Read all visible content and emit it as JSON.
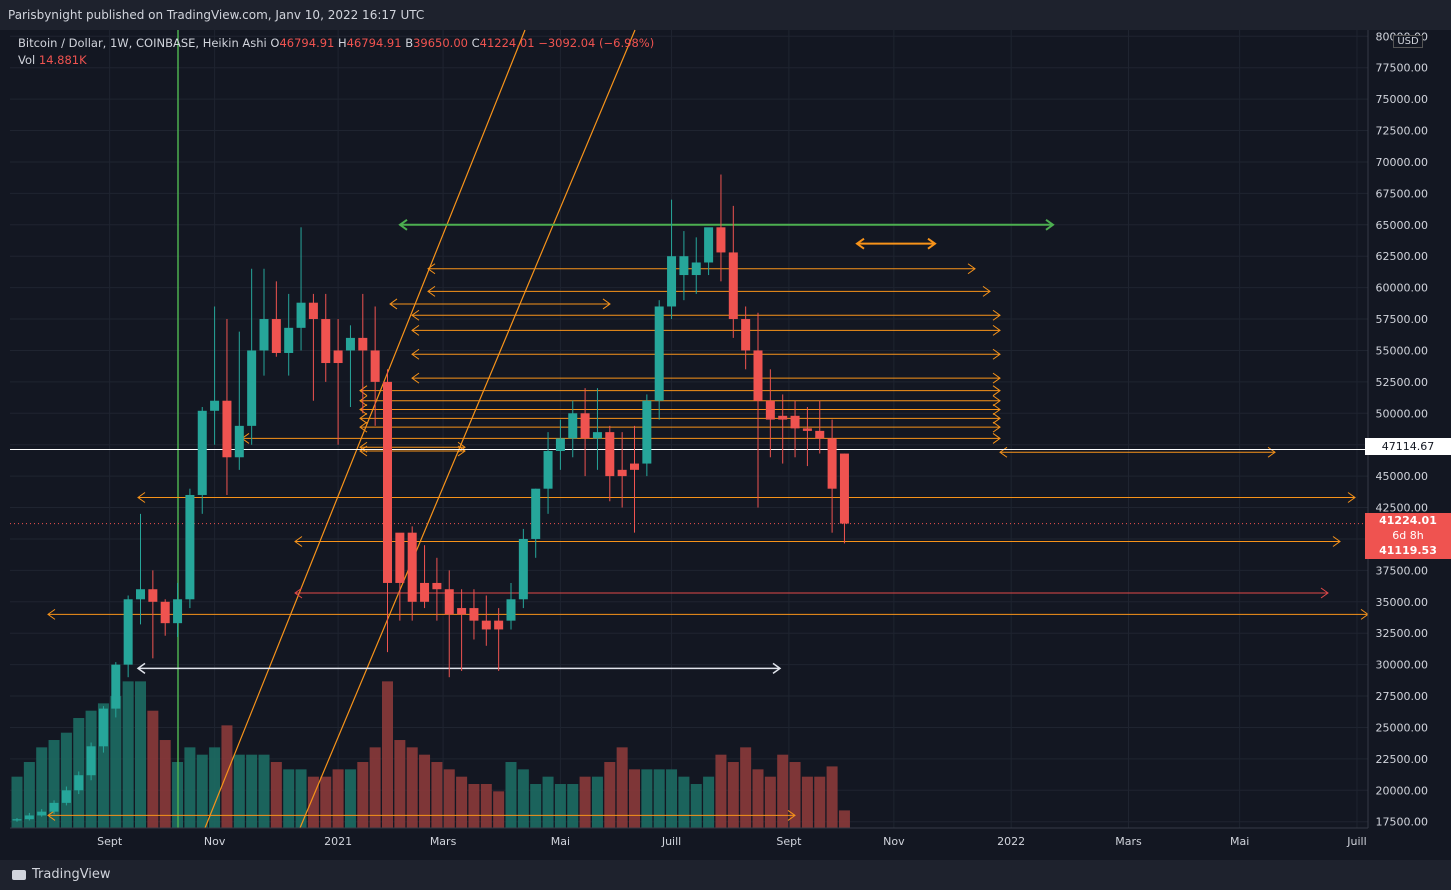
{
  "header": {
    "published": "Parisbynight published on TradingView.com, Janv 10, 2022 16:17 UTC"
  },
  "legend": {
    "symbol": "Bitcoin / Dollar, 1W, COINBASE, Heikin Ashi",
    "o_label": "O",
    "o": "46794.91",
    "h_label": "H",
    "h": "46794.91",
    "b_label": "B",
    "b": "39650.00",
    "c_label": "C",
    "c": "41224.01",
    "change": "−3092.04 (−6.98%)",
    "vol_label": "Vol",
    "vol": "14.881K"
  },
  "price_axis": {
    "currency": "USD"
  },
  "badges": {
    "white_level": "47114.67",
    "last_price": "41224.01",
    "countdown": "6d 8h",
    "second_price": "41119.53"
  },
  "footer": {
    "brand": "TradingView"
  },
  "colors": {
    "up": "#26a69a",
    "down": "#ef5350",
    "fib": "#f7931a",
    "green": "#4caf50",
    "bg": "#131722"
  },
  "chart_data": {
    "type": "candlestick",
    "subtitle": "Bitcoin / Dollar, 1W, COINBASE, Heikin Ashi",
    "ylim": [
      17000,
      80500
    ],
    "y_ticks": [
      17500,
      20000,
      22500,
      25000,
      27500,
      30000,
      32500,
      35000,
      37500,
      40000,
      42500,
      45000,
      47500,
      50000,
      52500,
      55000,
      57500,
      60000,
      62500,
      65000,
      67500,
      70000,
      72500,
      75000,
      77500,
      80000
    ],
    "x_ticks": [
      "Sept",
      "Nov",
      "2021",
      "Mars",
      "Mai",
      "Juill",
      "Sept",
      "Nov",
      "2022",
      "Mars",
      "Mai",
      "Juill"
    ],
    "candles": [
      [
        17600,
        17800,
        17500,
        17700,
        0.35,
        1
      ],
      [
        17700,
        18200,
        17600,
        18000,
        0.45,
        1
      ],
      [
        18000,
        18500,
        17900,
        18300,
        0.55,
        1
      ],
      [
        18300,
        19200,
        18100,
        19000,
        0.6,
        1
      ],
      [
        19000,
        20300,
        18800,
        20000,
        0.65,
        1
      ],
      [
        20000,
        21500,
        19700,
        21200,
        0.75,
        1
      ],
      [
        21200,
        23800,
        20800,
        23500,
        0.8,
        1
      ],
      [
        23500,
        26700,
        23000,
        26500,
        0.85,
        1
      ],
      [
        26500,
        30200,
        25800,
        30000,
        0.9,
        1
      ],
      [
        30000,
        35500,
        29000,
        35200,
        1.0,
        1
      ],
      [
        35200,
        42000,
        33200,
        36000,
        1.0,
        1
      ],
      [
        36000,
        37500,
        30500,
        35000,
        0.8,
        0
      ],
      [
        35000,
        35200,
        32300,
        33300,
        0.6,
        0
      ],
      [
        33300,
        36500,
        32200,
        35200,
        0.45,
        1
      ],
      [
        35200,
        44000,
        34500,
        43500,
        0.55,
        1
      ],
      [
        43500,
        50500,
        42000,
        50200,
        0.5,
        1
      ],
      [
        50200,
        58500,
        47500,
        51000,
        0.55,
        1
      ],
      [
        51000,
        57500,
        43500,
        46500,
        0.7,
        0
      ],
      [
        46500,
        56500,
        45500,
        49000,
        0.5,
        1
      ],
      [
        49000,
        61500,
        47500,
        55000,
        0.5,
        1
      ],
      [
        55000,
        61500,
        53000,
        57500,
        0.5,
        1
      ],
      [
        57500,
        60500,
        54500,
        54800,
        0.45,
        0
      ],
      [
        54800,
        59500,
        53000,
        56800,
        0.4,
        1
      ],
      [
        56800,
        64800,
        55000,
        58800,
        0.4,
        1
      ],
      [
        58800,
        59500,
        51000,
        57500,
        0.35,
        0
      ],
      [
        57500,
        59500,
        52500,
        54000,
        0.35,
        0
      ],
      [
        54000,
        57500,
        47500,
        55000,
        0.4,
        0
      ],
      [
        55000,
        57000,
        50500,
        56000,
        0.4,
        1
      ],
      [
        56000,
        59500,
        50000,
        55000,
        0.45,
        0
      ],
      [
        55000,
        58500,
        49000,
        52500,
        0.55,
        0
      ],
      [
        52500,
        53500,
        31000,
        36500,
        1.0,
        0
      ],
      [
        36500,
        40000,
        33500,
        40500,
        0.6,
        0
      ],
      [
        40500,
        41000,
        33500,
        35000,
        0.55,
        0
      ],
      [
        35000,
        39500,
        34500,
        36500,
        0.5,
        0
      ],
      [
        36500,
        38500,
        33500,
        36000,
        0.45,
        0
      ],
      [
        36000,
        37500,
        29000,
        34000,
        0.4,
        0
      ],
      [
        34000,
        36000,
        29500,
        34500,
        0.35,
        0
      ],
      [
        34500,
        36000,
        32000,
        33500,
        0.3,
        0
      ],
      [
        33500,
        35500,
        31500,
        32800,
        0.3,
        0
      ],
      [
        32800,
        34500,
        29500,
        33500,
        0.25,
        0
      ],
      [
        33500,
        36500,
        32800,
        35200,
        0.45,
        1
      ],
      [
        35200,
        40800,
        34500,
        40000,
        0.4,
        1
      ],
      [
        40000,
        44000,
        38500,
        44000,
        0.3,
        1
      ],
      [
        44000,
        48500,
        42000,
        47000,
        0.35,
        1
      ],
      [
        47000,
        49500,
        45500,
        48000,
        0.3,
        1
      ],
      [
        48000,
        51000,
        46500,
        50000,
        0.3,
        1
      ],
      [
        50000,
        52000,
        45000,
        48000,
        0.35,
        0
      ],
      [
        48000,
        52000,
        45500,
        48500,
        0.35,
        1
      ],
      [
        48500,
        49000,
        43000,
        45000,
        0.45,
        0
      ],
      [
        45000,
        48500,
        42500,
        45500,
        0.55,
        0
      ],
      [
        45500,
        49000,
        40500,
        46000,
        0.4,
        0
      ],
      [
        46000,
        51500,
        45000,
        51000,
        0.4,
        1
      ],
      [
        51000,
        59000,
        49500,
        58500,
        0.4,
        1
      ],
      [
        58500,
        67000,
        57500,
        62500,
        0.4,
        1
      ],
      [
        62500,
        64500,
        59000,
        61000,
        0.35,
        1
      ],
      [
        61000,
        64000,
        59500,
        62000,
        0.3,
        1
      ],
      [
        62000,
        64500,
        61000,
        64800,
        0.35,
        1
      ],
      [
        64800,
        69000,
        60500,
        62800,
        0.5,
        0
      ],
      [
        62800,
        66500,
        56000,
        57500,
        0.45,
        0
      ],
      [
        57500,
        58500,
        53500,
        55000,
        0.55,
        0
      ],
      [
        55000,
        58000,
        42500,
        51000,
        0.4,
        0
      ],
      [
        51000,
        53500,
        46500,
        49500,
        0.35,
        0
      ],
      [
        49500,
        51500,
        46000,
        49800,
        0.5,
        0
      ],
      [
        49800,
        51000,
        46500,
        48800,
        0.45,
        0
      ],
      [
        48800,
        50500,
        45800,
        48600,
        0.35,
        0
      ],
      [
        48600,
        51000,
        46800,
        48000,
        0.35,
        0
      ],
      [
        48000,
        49500,
        40500,
        44000,
        0.42,
        0
      ],
      [
        46794.91,
        46794.91,
        39650,
        41224.01,
        0.12,
        0
      ]
    ]
  }
}
